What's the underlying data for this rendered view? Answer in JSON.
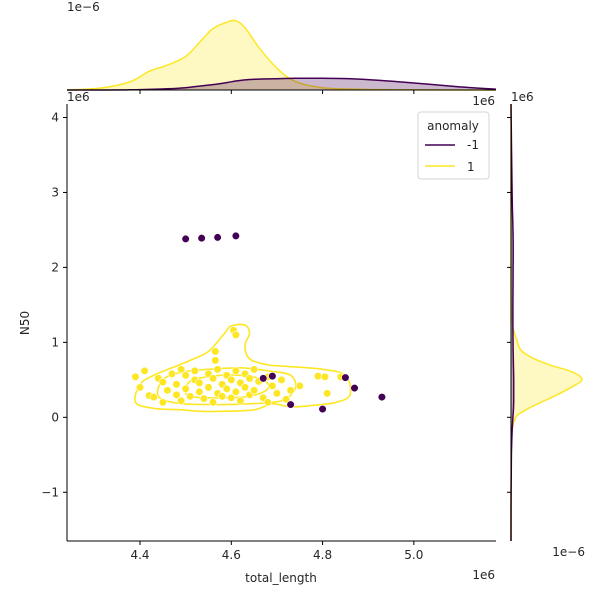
{
  "chart_data": {
    "type": "scatter",
    "title": "",
    "xlabel": "total_length",
    "ylabel": "N50",
    "xlim": [
      4.24,
      5.18
    ],
    "ylim": [
      -1.65,
      4.18
    ],
    "x_offset_label": "1e6",
    "y_offset_label": "1e6",
    "top_marginal_offset_label": "1e−6",
    "right_marginal_offset_label": "1e−6",
    "x_ticks": [
      4.4,
      4.6,
      4.8,
      5.0
    ],
    "x_tick_labels": [
      "4.4",
      "4.6",
      "4.8",
      "5.0"
    ],
    "y_ticks": [
      -1,
      0,
      1,
      2,
      3,
      4
    ],
    "y_tick_labels": [
      "−1",
      "0",
      "1",
      "2",
      "3",
      "4"
    ],
    "grid": false,
    "legend": {
      "title": "anomaly",
      "placement": "top-right",
      "entries": [
        {
          "label": "-1",
          "color": "#440154"
        },
        {
          "label": "1",
          "color": "#fde725"
        }
      ]
    },
    "series": [
      {
        "name": "-1",
        "color": "#440154",
        "points": [
          [
            4.5,
            2.38
          ],
          [
            4.535,
            2.39
          ],
          [
            4.57,
            2.4
          ],
          [
            4.61,
            2.42
          ],
          [
            4.67,
            0.52
          ],
          [
            4.69,
            0.55
          ],
          [
            4.73,
            0.17
          ],
          [
            4.8,
            0.11
          ],
          [
            4.85,
            0.53
          ],
          [
            4.87,
            0.39
          ],
          [
            4.93,
            0.27
          ]
        ]
      },
      {
        "name": "1",
        "color": "#fde725",
        "points": [
          [
            4.39,
            0.54
          ],
          [
            4.4,
            0.4
          ],
          [
            4.41,
            0.62
          ],
          [
            4.42,
            0.29
          ],
          [
            4.43,
            0.27
          ],
          [
            4.44,
            0.52
          ],
          [
            4.45,
            0.2
          ],
          [
            4.45,
            0.47
          ],
          [
            4.46,
            0.36
          ],
          [
            4.47,
            0.58
          ],
          [
            4.48,
            0.3
          ],
          [
            4.48,
            0.44
          ],
          [
            4.49,
            0.64
          ],
          [
            4.49,
            0.22
          ],
          [
            4.5,
            0.56
          ],
          [
            4.5,
            0.38
          ],
          [
            4.51,
            0.28
          ],
          [
            4.52,
            0.5
          ],
          [
            4.52,
            0.62
          ],
          [
            4.53,
            0.34
          ],
          [
            4.53,
            0.46
          ],
          [
            4.54,
            0.25
          ],
          [
            4.55,
            0.58
          ],
          [
            4.55,
            0.4
          ],
          [
            4.56,
            0.2
          ],
          [
            4.56,
            0.52
          ],
          [
            4.565,
            0.76
          ],
          [
            4.565,
            0.88
          ],
          [
            4.57,
            0.32
          ],
          [
            4.57,
            0.64
          ],
          [
            4.58,
            0.44
          ],
          [
            4.58,
            0.28
          ],
          [
            4.59,
            0.56
          ],
          [
            4.59,
            0.38
          ],
          [
            4.6,
            0.26
          ],
          [
            4.6,
            0.5
          ],
          [
            4.61,
            0.62
          ],
          [
            4.61,
            0.34
          ],
          [
            4.605,
            1.16
          ],
          [
            4.61,
            1.1
          ],
          [
            4.62,
            0.46
          ],
          [
            4.62,
            0.22
          ],
          [
            4.63,
            0.58
          ],
          [
            4.63,
            0.4
          ],
          [
            4.64,
            0.3
          ],
          [
            4.64,
            0.52
          ],
          [
            4.65,
            0.64
          ],
          [
            4.65,
            0.36
          ],
          [
            4.66,
            0.48
          ],
          [
            4.67,
            0.26
          ],
          [
            4.68,
            0.54
          ],
          [
            4.68,
            0.2
          ],
          [
            4.69,
            0.42
          ],
          [
            4.7,
            0.32
          ],
          [
            4.71,
            0.5
          ],
          [
            4.72,
            0.24
          ],
          [
            4.73,
            0.36
          ],
          [
            4.75,
            0.42
          ],
          [
            4.79,
            0.55
          ],
          [
            4.805,
            0.54
          ],
          [
            4.81,
            0.32
          ],
          [
            4.84,
            0.54
          ]
        ]
      }
    ],
    "kde_contours": [
      {
        "series": "1",
        "color": "#fde725",
        "level": "outer",
        "points": [
          [
            4.39,
            0.2
          ],
          [
            4.4,
            0.44
          ],
          [
            4.43,
            0.56
          ],
          [
            4.47,
            0.66
          ],
          [
            4.51,
            0.76
          ],
          [
            4.55,
            0.88
          ],
          [
            4.585,
            1.12
          ],
          [
            4.6,
            1.22
          ],
          [
            4.63,
            1.23
          ],
          [
            4.64,
            1.12
          ],
          [
            4.63,
            0.96
          ],
          [
            4.64,
            0.78
          ],
          [
            4.68,
            0.7
          ],
          [
            4.72,
            0.68
          ],
          [
            4.8,
            0.64
          ],
          [
            4.85,
            0.56
          ],
          [
            4.86,
            0.3
          ],
          [
            4.83,
            0.2
          ],
          [
            4.78,
            0.16
          ],
          [
            4.73,
            0.14
          ],
          [
            4.69,
            0.18
          ],
          [
            4.65,
            0.1
          ],
          [
            4.58,
            0.08
          ],
          [
            4.53,
            0.08
          ],
          [
            4.49,
            0.1
          ],
          [
            4.43,
            0.12
          ]
        ]
      },
      {
        "series": "1",
        "color": "#fde725",
        "level": "middle",
        "points": [
          [
            4.44,
            0.28
          ],
          [
            4.45,
            0.5
          ],
          [
            4.49,
            0.6
          ],
          [
            4.55,
            0.64
          ],
          [
            4.62,
            0.66
          ],
          [
            4.68,
            0.62
          ],
          [
            4.73,
            0.56
          ],
          [
            4.74,
            0.38
          ],
          [
            4.71,
            0.22
          ],
          [
            4.64,
            0.18
          ],
          [
            4.55,
            0.17
          ],
          [
            4.48,
            0.19
          ]
        ]
      },
      {
        "series": "1",
        "color": "#fde725",
        "level": "inner",
        "points": [
          [
            4.5,
            0.32
          ],
          [
            4.51,
            0.48
          ],
          [
            4.56,
            0.55
          ],
          [
            4.62,
            0.56
          ],
          [
            4.67,
            0.5
          ],
          [
            4.68,
            0.38
          ],
          [
            4.64,
            0.28
          ],
          [
            4.57,
            0.26
          ],
          [
            4.52,
            0.27
          ]
        ]
      }
    ],
    "marginal_x": {
      "x": [
        4.24,
        4.32,
        4.38,
        4.42,
        4.46,
        4.5,
        4.53,
        4.56,
        4.59,
        4.61,
        4.63,
        4.66,
        4.7,
        4.74,
        4.8,
        4.88,
        4.98,
        5.1,
        5.18
      ],
      "series": [
        {
          "name": "1",
          "color": "#fde725",
          "values": [
            0.0,
            0.6,
            2.2,
            4.8,
            6.4,
            8.6,
            12.2,
            15.8,
            17.4,
            17.8,
            16.0,
            11.0,
            5.6,
            2.2,
            0.6,
            0.2,
            0.05,
            0.0,
            0.0
          ]
        },
        {
          "name": "-1",
          "color": "#440154",
          "values": [
            0.0,
            0.0,
            0.05,
            0.15,
            0.3,
            0.6,
            1.0,
            1.4,
            1.9,
            2.3,
            2.6,
            2.8,
            2.9,
            3.0,
            3.0,
            2.8,
            2.0,
            0.8,
            0.2
          ]
        }
      ]
    },
    "marginal_y": {
      "y": [
        -1.65,
        -1.0,
        -0.5,
        -0.2,
        0.0,
        0.1,
        0.2,
        0.3,
        0.4,
        0.5,
        0.6,
        0.7,
        0.8,
        0.9,
        1.05,
        1.2,
        1.5,
        2.0,
        2.4,
        3.0,
        4.18
      ],
      "series": [
        {
          "name": "1",
          "color": "#fde725",
          "values": [
            0.0,
            0.0,
            0.02,
            0.15,
            0.9,
            2.8,
            5.6,
            8.6,
            11.2,
            13.2,
            11.6,
            7.2,
            3.8,
            1.8,
            1.0,
            0.4,
            0.05,
            0.0,
            0.0,
            0.0,
            0.0
          ]
        },
        {
          "name": "-1",
          "color": "#440154",
          "values": [
            0.0,
            0.02,
            0.08,
            0.2,
            0.35,
            0.45,
            0.5,
            0.5,
            0.5,
            0.5,
            0.48,
            0.45,
            0.42,
            0.4,
            0.38,
            0.36,
            0.36,
            0.4,
            0.4,
            0.2,
            0.0
          ]
        }
      ]
    }
  }
}
